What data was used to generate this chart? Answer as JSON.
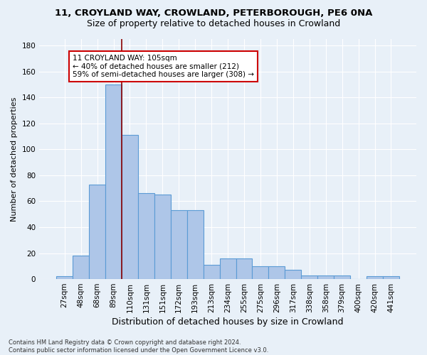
{
  "title1": "11, CROYLAND WAY, CROWLAND, PETERBOROUGH, PE6 0NA",
  "title2": "Size of property relative to detached houses in Crowland",
  "xlabel": "Distribution of detached houses by size in Crowland",
  "ylabel": "Number of detached properties",
  "footnote": "Contains HM Land Registry data © Crown copyright and database right 2024.\nContains public sector information licensed under the Open Government Licence v3.0.",
  "bar_labels": [
    "27sqm",
    "48sqm",
    "68sqm",
    "89sqm",
    "110sqm",
    "131sqm",
    "151sqm",
    "172sqm",
    "193sqm",
    "213sqm",
    "234sqm",
    "255sqm",
    "275sqm",
    "296sqm",
    "317sqm",
    "338sqm",
    "358sqm",
    "379sqm",
    "400sqm",
    "420sqm",
    "441sqm"
  ],
  "bar_values": [
    2,
    18,
    73,
    150,
    111,
    66,
    65,
    53,
    53,
    11,
    16,
    16,
    10,
    10,
    7,
    3,
    3,
    3,
    0,
    2,
    2
  ],
  "bar_color": "#aec6e8",
  "bar_edge_color": "#5b9bd5",
  "ylim": [
    0,
    185
  ],
  "yticks": [
    0,
    20,
    40,
    60,
    80,
    100,
    120,
    140,
    160,
    180
  ],
  "vline_index": 4,
  "vline_color": "#8b0000",
  "annotation_text": "11 CROYLAND WAY: 105sqm\n← 40% of detached houses are smaller (212)\n59% of semi-detached houses are larger (308) →",
  "annotation_box_color": "#ffffff",
  "annotation_box_edge": "#cc0000",
  "background_color": "#e8f0f8",
  "grid_color": "#ffffff",
  "title1_fontsize": 9.5,
  "title2_fontsize": 9,
  "ylabel_fontsize": 8,
  "xlabel_fontsize": 9,
  "tick_fontsize": 7.5,
  "ann_fontsize": 7.5,
  "footnote_fontsize": 6
}
